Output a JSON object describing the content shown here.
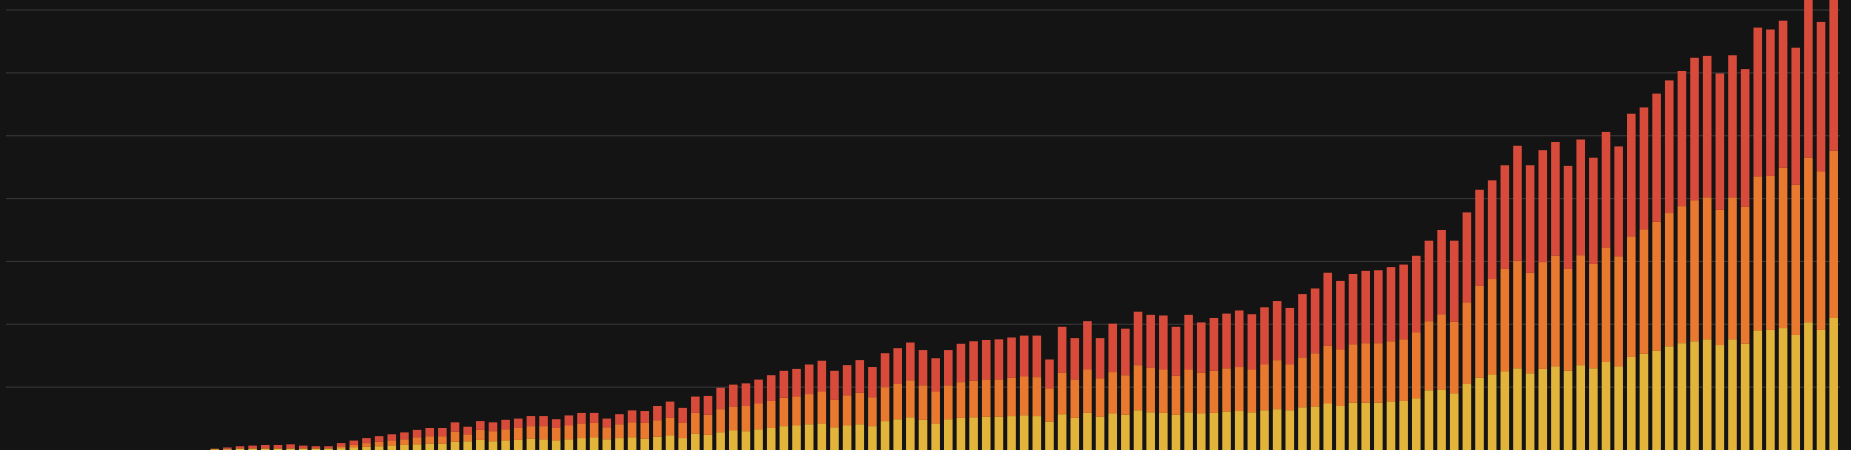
{
  "chart_data": {
    "type": "bar",
    "stacked": true,
    "grid": true,
    "ylim": [
      0,
      70
    ],
    "gridlines": [
      10,
      20,
      30,
      40,
      50,
      60,
      70
    ],
    "colors": {
      "background": "#141414",
      "grid": "#3a3a3a",
      "bottom": "#e3b43a",
      "middle": "#e8792f",
      "top": "#d84a3a"
    },
    "series": [
      {
        "values": [
          0,
          0,
          0,
          0,
          0,
          0,
          0,
          0,
          0,
          0,
          0,
          0,
          0,
          0,
          0,
          0,
          0.1,
          0.1,
          0.2,
          0.2,
          0.2,
          0.2,
          0.2,
          0.2,
          0.2,
          0.2,
          0.3,
          0.4,
          0.5,
          0.6,
          0.7,
          0.8,
          0.9,
          1.0,
          1.0,
          1.3,
          1.4,
          1.6,
          1.4,
          1.5,
          1.6,
          1.8,
          1.7,
          1.5,
          1.7,
          1.9,
          2.0,
          1.7,
          1.9,
          2.0,
          1.8,
          2.1,
          2.3,
          1.9,
          2.6,
          2.4,
          2.8,
          3.1,
          3.0,
          3.3,
          3.5,
          3.8,
          3.9,
          4.1,
          4.2,
          3.6,
          3.9,
          4.1,
          3.8,
          4.6,
          4.9,
          5.2,
          4.8,
          4.2,
          4.9,
          5.1,
          5.2,
          5.3,
          5.3,
          5.4,
          5.5,
          5.4,
          4.5,
          5.7,
          5.1,
          5.9,
          5.3,
          5.8,
          5.6,
          6.3,
          6.0,
          5.9,
          5.6,
          6.0,
          5.8,
          5.9,
          6.1,
          6.2,
          6.0,
          6.3,
          6.5,
          6.3,
          6.8,
          6.9,
          7.4,
          7.0,
          7.5,
          7.5,
          7.5,
          7.7,
          7.8,
          8.2,
          9.5,
          9.6,
          9.0,
          10.5,
          11.5,
          12.0,
          12.5,
          13.0,
          12.2,
          12.9,
          13.3,
          12.6,
          13.5,
          13.0,
          14.0,
          13.3,
          14.8,
          15.3,
          15.8,
          16.5,
          17.0,
          17.3,
          17.6,
          16.7,
          17.6,
          16.9,
          19.0,
          19.1,
          19.4,
          18.3,
          20.3,
          19.1,
          21.0
        ]
      },
      {
        "values": [
          0,
          0,
          0,
          0,
          0,
          0,
          0,
          0,
          0,
          0,
          0,
          0,
          0,
          0,
          0,
          0,
          0.1,
          0.1,
          0.1,
          0.1,
          0.1,
          0.1,
          0.1,
          0.1,
          0.1,
          0.1,
          0.3,
          0.4,
          0.6,
          0.7,
          0.8,
          0.9,
          1.1,
          1.2,
          1.2,
          1.6,
          1.1,
          1.6,
          1.6,
          1.8,
          1.9,
          2.0,
          2.1,
          2.0,
          2.2,
          2.3,
          2.3,
          1.9,
          2.2,
          2.4,
          2.5,
          2.6,
          2.8,
          2.4,
          3.3,
          3.2,
          3.7,
          3.8,
          4.0,
          4.1,
          4.3,
          4.5,
          4.6,
          4.8,
          5.1,
          4.4,
          4.8,
          5.0,
          4.6,
          5.4,
          5.6,
          5.9,
          5.5,
          5.1,
          5.4,
          5.7,
          5.8,
          5.9,
          5.9,
          6.1,
          6.2,
          6.2,
          5.3,
          6.6,
          6.1,
          6.9,
          6.1,
          6.6,
          6.3,
          7.2,
          7.1,
          6.9,
          6.2,
          6.8,
          6.5,
          6.7,
          6.9,
          7.0,
          6.8,
          7.3,
          7.8,
          7.3,
          7.9,
          8.5,
          9.2,
          9.0,
          9.3,
          9.5,
          9.5,
          9.6,
          9.8,
          10.5,
          11.0,
          12.0,
          11.4,
          13.0,
          14.6,
          15.2,
          16.3,
          17.1,
          16.0,
          17.0,
          17.6,
          16.2,
          17.5,
          16.6,
          18.2,
          17.5,
          19.2,
          19.8,
          20.5,
          21.2,
          21.8,
          22.4,
          22.6,
          21.5,
          22.6,
          21.8,
          24.5,
          24.5,
          25.5,
          23.9,
          26.2,
          25.2,
          26.6
        ]
      },
      {
        "values": [
          0,
          0,
          0,
          0,
          0,
          0,
          0,
          0,
          0,
          0,
          0,
          0,
          0,
          0,
          0,
          0,
          0,
          0.2,
          0.3,
          0.4,
          0.5,
          0.5,
          0.6,
          0.4,
          0.3,
          0.3,
          0.5,
          0.7,
          0.8,
          0.9,
          1.0,
          1.1,
          1.2,
          1.3,
          1.3,
          1.5,
          1.2,
          1.4,
          1.4,
          1.5,
          1.5,
          1.6,
          1.6,
          1.4,
          1.6,
          1.7,
          1.6,
          1.4,
          1.6,
          1.9,
          1.9,
          2.3,
          2.6,
          2.4,
          2.6,
          3.0,
          3.4,
          3.5,
          3.6,
          3.8,
          4.1,
          4.3,
          4.4,
          4.7,
          4.9,
          4.6,
          4.8,
          5.2,
          4.8,
          5.4,
          5.7,
          6.0,
          5.6,
          5.3,
          5.6,
          6.1,
          6.3,
          6.3,
          6.4,
          6.4,
          6.5,
          6.6,
          4.6,
          7.3,
          6.6,
          7.7,
          6.4,
          7.7,
          7.4,
          8.5,
          8.4,
          8.6,
          7.8,
          8.7,
          8.0,
          8.4,
          8.7,
          9.0,
          8.8,
          9.1,
          9.4,
          9.0,
          10.1,
          10.3,
          11.6,
          10.9,
          11.2,
          11.5,
          11.6,
          11.8,
          11.9,
          12.2,
          12.8,
          13.4,
          12.9,
          14.3,
          15.3,
          15.7,
          16.5,
          18.3,
          17.1,
          17.8,
          18.1,
          16.4,
          18.4,
          16.9,
          18.4,
          17.5,
          19.5,
          19.4,
          20.4,
          21.1,
          21.5,
          22.7,
          22.5,
          21.7,
          22.6,
          21.9,
          23.7,
          23.3,
          23.4,
          21.8,
          25.3,
          23.8,
          26.4
        ]
      }
    ]
  }
}
